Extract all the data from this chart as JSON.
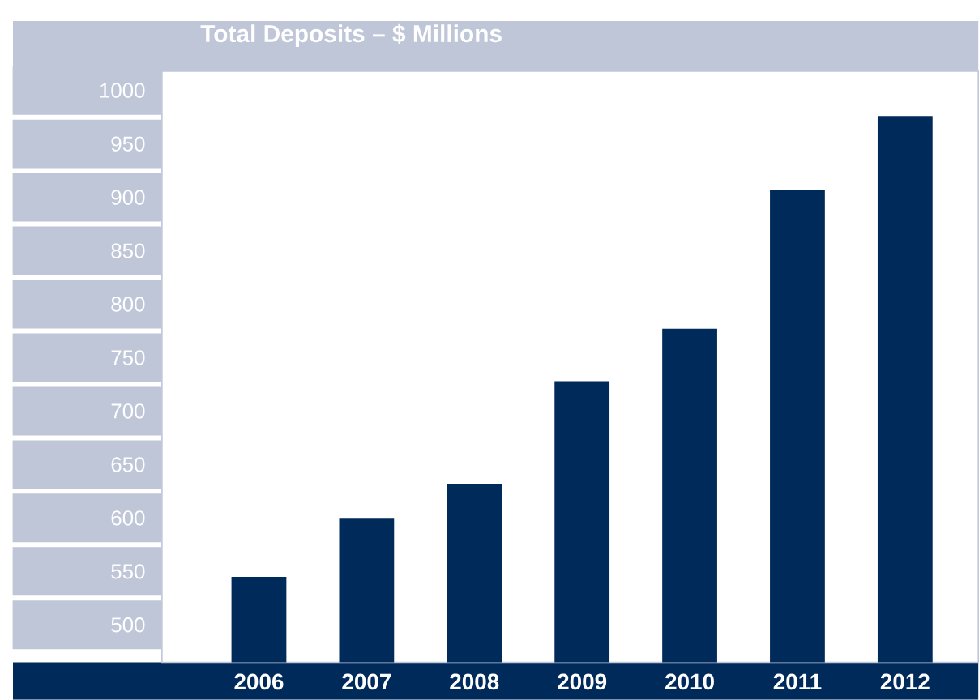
{
  "chart_data": {
    "type": "bar",
    "title": "Total Deposits – $ Millions",
    "categories": [
      "2006",
      "2007",
      "2008",
      "2009",
      "2010",
      "2011",
      "2012"
    ],
    "values": [
      545,
      600,
      632,
      728,
      777,
      907,
      976
    ],
    "color": "#002a5a",
    "ylim": [
      465,
      1018
    ],
    "yticks": [
      500,
      550,
      600,
      650,
      700,
      750,
      800,
      850,
      900,
      950,
      1000
    ]
  }
}
